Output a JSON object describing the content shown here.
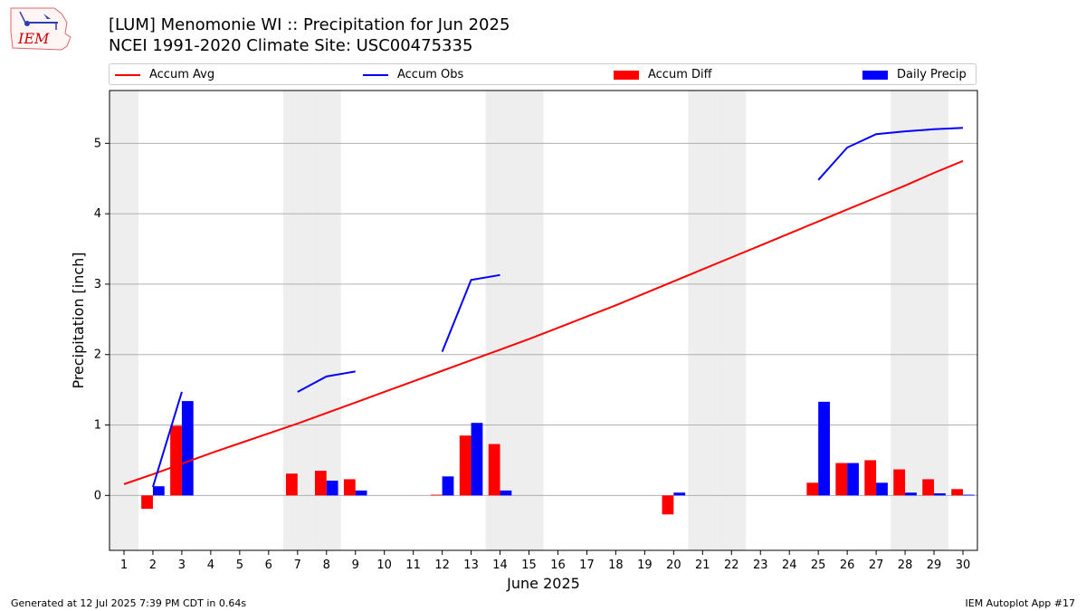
{
  "header": {
    "title_line1": "[LUM] Menomonie  WI :: Precipitation for Jun 2025",
    "title_line2": "NCEI 1991-2020 Climate Site: USC00475335"
  },
  "logo": {
    "text": "IEM",
    "color": "#cc0000"
  },
  "footer": {
    "left": "Generated at 12 Jul 2025 7:39 PM CDT in 0.64s",
    "right": "IEM Autoplot App #17"
  },
  "colors": {
    "avg": "#ff0000",
    "obs": "#0000ff",
    "diff": "#ff0000",
    "daily": "#0000ff",
    "weekend_band": "#eeeeee",
    "grid": "#b0b0b0"
  },
  "chart_data": {
    "type": "bar",
    "xlabel": "June 2025",
    "ylabel": "Precipitation [inch]",
    "xlim": [
      0.5,
      30.5
    ],
    "ylim": [
      -0.78,
      5.75
    ],
    "yticks": [
      0,
      1,
      2,
      3,
      4,
      5
    ],
    "grid": "horizontal",
    "legend_placement": "top",
    "weekend_days": [
      1,
      7,
      8,
      14,
      15,
      21,
      22,
      28,
      29
    ],
    "days": [
      1,
      2,
      3,
      4,
      5,
      6,
      7,
      8,
      9,
      10,
      11,
      12,
      13,
      14,
      15,
      16,
      17,
      18,
      19,
      20,
      21,
      22,
      23,
      24,
      25,
      26,
      27,
      28,
      29,
      30
    ],
    "series": [
      {
        "name": "Accum Avg",
        "kind": "line",
        "values": [
          0.16,
          0.3,
          0.45,
          0.6,
          0.74,
          0.88,
          1.02,
          1.17,
          1.32,
          1.47,
          1.62,
          1.77,
          1.92,
          2.07,
          2.22,
          2.38,
          2.54,
          2.7,
          2.87,
          3.04,
          3.21,
          3.38,
          3.55,
          3.72,
          3.89,
          4.06,
          4.23,
          4.4,
          4.58,
          4.75
        ]
      },
      {
        "name": "Accum Obs",
        "kind": "line",
        "values": [
          null,
          0.12,
          1.47,
          null,
          null,
          null,
          1.47,
          1.69,
          1.76,
          null,
          null,
          2.04,
          3.06,
          3.13,
          null,
          null,
          null,
          null,
          null,
          null,
          null,
          null,
          null,
          null,
          4.48,
          4.94,
          5.13,
          5.17,
          5.2,
          5.22
        ]
      },
      {
        "name": "Accum Diff",
        "kind": "bar",
        "values": [
          null,
          -0.19,
          0.99,
          null,
          null,
          null,
          0.31,
          0.35,
          0.23,
          null,
          null,
          0.01,
          0.85,
          0.73,
          null,
          null,
          null,
          null,
          null,
          -0.27,
          null,
          null,
          null,
          null,
          0.18,
          0.46,
          0.5,
          0.37,
          0.23,
          0.09
        ]
      },
      {
        "name": "Daily Precip",
        "kind": "bar",
        "values": [
          null,
          0.13,
          1.34,
          null,
          null,
          null,
          null,
          0.21,
          0.07,
          null,
          null,
          0.27,
          1.03,
          0.07,
          null,
          null,
          null,
          null,
          null,
          0.04,
          null,
          null,
          null,
          null,
          1.33,
          0.46,
          0.18,
          0.04,
          0.03,
          0.01
        ]
      }
    ]
  }
}
